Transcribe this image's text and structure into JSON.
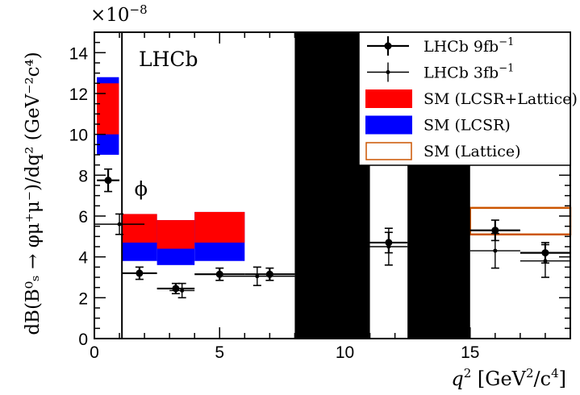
{
  "chart_data": {
    "type": "scatter",
    "title": "",
    "experiment_label": "LHCb",
    "exponent_label": "×10",
    "exponent_power": "−8",
    "xlabel": "q",
    "xlabel_power": "2",
    "xlabel_unit": "[GeV",
    "xlabel_unit_power": "2",
    "xlabel_unit_tail": "/c",
    "xlabel_unit_tail_power": "4",
    "xlabel_close": "]",
    "ylabel": "dB(B⁰ₛ → φμ⁺μ⁻)/dq² (GeV⁻²c⁴)",
    "xlim": [
      0,
      19
    ],
    "ylim": [
      0,
      15
    ],
    "x_ticks": [
      0,
      5,
      10,
      15
    ],
    "y_ticks": [
      0,
      2,
      4,
      6,
      8,
      10,
      12,
      14
    ],
    "phi_label": "ϕ",
    "phi_label_pos": [
      1.6,
      7.0
    ],
    "vetoed_regions": [
      [
        8.0,
        11.0
      ],
      [
        12.5,
        15.0
      ]
    ],
    "phi_region_line_x": 1.1,
    "legend_position": "top-right",
    "legend": [
      {
        "label": "LHCb 9fb",
        "label_power": "−1",
        "kind": "marker-dot"
      },
      {
        "label": "LHCb 3fb",
        "label_power": "−1",
        "kind": "marker-star"
      },
      {
        "label": "SM (LCSR+Lattice)",
        "kind": "fill",
        "color": "#ff0000"
      },
      {
        "label": "SM (LCSR)",
        "kind": "fill",
        "color": "#0000ff"
      },
      {
        "label": "SM (Lattice)",
        "kind": "outline",
        "color": "#cc5500"
      }
    ],
    "sm_predictions": [
      {
        "series": "SM (LCSR)",
        "x": [
          0.1,
          0.98
        ],
        "y": [
          9.0,
          12.8
        ],
        "color": "#0000ff"
      },
      {
        "series": "SM (LCSR+Lattice)",
        "x": [
          0.1,
          0.98
        ],
        "y": [
          10.0,
          12.5
        ],
        "color": "#ff0000"
      },
      {
        "series": "SM (LCSR)",
        "x": [
          1.1,
          2.5
        ],
        "y": [
          3.8,
          6.1
        ],
        "color": "#0000ff"
      },
      {
        "series": "SM (LCSR+Lattice)",
        "x": [
          1.1,
          2.5
        ],
        "y": [
          4.7,
          6.1
        ],
        "color": "#ff0000"
      },
      {
        "series": "SM (LCSR)",
        "x": [
          2.5,
          4.0
        ],
        "y": [
          3.6,
          5.8
        ],
        "color": "#0000ff"
      },
      {
        "series": "SM (LCSR+Lattice)",
        "x": [
          2.5,
          4.0
        ],
        "y": [
          4.4,
          5.8
        ],
        "color": "#ff0000"
      },
      {
        "series": "SM (LCSR)",
        "x": [
          4.0,
          6.0
        ],
        "y": [
          3.8,
          6.2
        ],
        "color": "#0000ff"
      },
      {
        "series": "SM (LCSR+Lattice)",
        "x": [
          4.0,
          6.0
        ],
        "y": [
          4.7,
          6.2
        ],
        "color": "#ff0000"
      },
      {
        "series": "SM (Lattice)",
        "x": [
          15.0,
          19.0
        ],
        "y": [
          5.1,
          6.4
        ],
        "color": "#cc5500"
      }
    ],
    "series": [
      {
        "name": "LHCb 9fb",
        "marker": "dot",
        "points": [
          {
            "x": 0.55,
            "xerr": 0.45,
            "y": 7.75,
            "yerr": 0.55
          },
          {
            "x": 1.8,
            "xerr": 0.7,
            "y": 3.2,
            "yerr": 0.3
          },
          {
            "x": 3.25,
            "xerr": 0.75,
            "y": 2.45,
            "yerr": 0.25
          },
          {
            "x": 5.0,
            "xerr": 1.0,
            "y": 3.15,
            "yerr": 0.3
          },
          {
            "x": 7.0,
            "xerr": 1.0,
            "y": 3.15,
            "yerr": 0.3
          },
          {
            "x": 11.75,
            "xerr": 0.75,
            "y": 4.7,
            "yerr": 0.5
          },
          {
            "x": 16.0,
            "xerr": 1.0,
            "y": 5.3,
            "yerr": 0.5
          },
          {
            "x": 18.0,
            "xerr": 1.0,
            "y": 4.2,
            "yerr": 0.5
          }
        ]
      },
      {
        "name": "LHCb 3fb",
        "marker": "star",
        "points": [
          {
            "x": 1.0,
            "xerr": 1.0,
            "y": 5.6,
            "yerr": 0.5
          },
          {
            "x": 3.5,
            "xerr": 0.5,
            "y": 2.35,
            "yerr": 0.35
          },
          {
            "x": 6.5,
            "xerr": 1.5,
            "y": 3.05,
            "yerr": 0.45
          },
          {
            "x": 11.75,
            "xerr": 0.75,
            "y": 4.5,
            "yerr": 0.9
          },
          {
            "x": 16.0,
            "xerr": 1.0,
            "y": 4.3,
            "yerr": 0.85
          },
          {
            "x": 18.0,
            "xerr": 1.0,
            "y": 3.8,
            "yerr": 0.8
          }
        ]
      }
    ]
  }
}
